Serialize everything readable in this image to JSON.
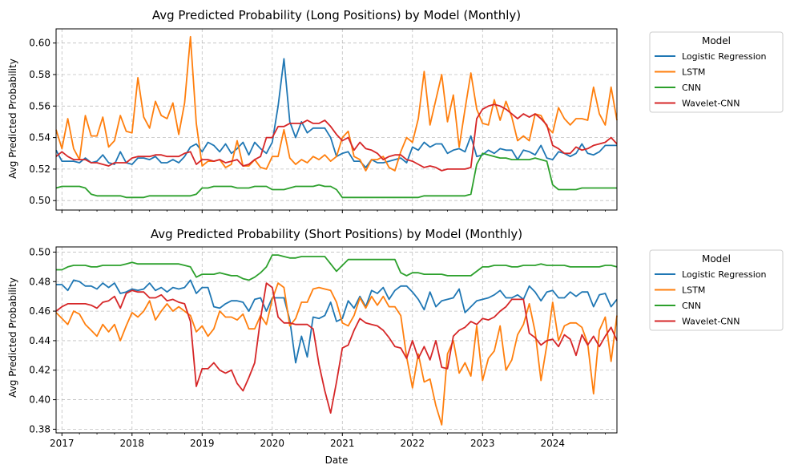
{
  "figure": {
    "xlabel": "Date",
    "x_ticks": [
      "2017",
      "2018",
      "2019",
      "2020",
      "2021",
      "2022",
      "2023",
      "2024"
    ]
  },
  "colors": {
    "Logistic Regression": "#1f77b4",
    "LSTM": "#ff7f0e",
    "CNN": "#2ca02c",
    "Wavelet-CNN": "#d62728"
  },
  "chart_data": [
    {
      "type": "line",
      "title": "Avg Predicted Probability (Long Positions) by Model (Monthly)",
      "ylabel": "Avg Predicted Probability",
      "xlabel": "",
      "x_start": "2016-12",
      "x_range": [
        "2016-12",
        "2024-12"
      ],
      "ylim": [
        0.494,
        0.609
      ],
      "y_ticks": [
        0.5,
        0.52,
        0.54,
        0.56,
        0.58,
        0.6
      ],
      "y_tick_labels": [
        "0.50",
        "0.52",
        "0.54",
        "0.56",
        "0.58",
        "0.60"
      ],
      "grid": true,
      "legend": {
        "title": "Model",
        "placement": "outside-right"
      },
      "series": [
        {
          "name": "Logistic Regression",
          "values": [
            0.532,
            0.525,
            0.525,
            0.525,
            0.524,
            0.527,
            0.524,
            0.525,
            0.529,
            0.524,
            0.523,
            0.531,
            0.524,
            0.523,
            0.527,
            0.527,
            0.526,
            0.528,
            0.524,
            0.524,
            0.526,
            0.524,
            0.528,
            0.534,
            0.536,
            0.531,
            0.537,
            0.535,
            0.531,
            0.536,
            0.53,
            0.533,
            0.537,
            0.529,
            0.537,
            0.533,
            0.53,
            0.537,
            0.56,
            0.59,
            0.55,
            0.54,
            0.55,
            0.543,
            0.546,
            0.546,
            0.546,
            0.54,
            0.528,
            0.53,
            0.531,
            0.525,
            0.525,
            0.521,
            0.526,
            0.524,
            0.524,
            0.525,
            0.526,
            0.527,
            0.524,
            0.534,
            0.532,
            0.537,
            0.534,
            0.536,
            0.536,
            0.53,
            0.532,
            0.533,
            0.531,
            0.541,
            0.528,
            0.529,
            0.532,
            0.53,
            0.533,
            0.532,
            0.532,
            0.526,
            0.532,
            0.531,
            0.529,
            0.535,
            0.527,
            0.526,
            0.531,
            0.53,
            0.528,
            0.53,
            0.536,
            0.53,
            0.529,
            0.531,
            0.535,
            0.535,
            0.535
          ]
        },
        {
          "name": "LSTM",
          "values": [
            0.545,
            0.533,
            0.552,
            0.533,
            0.526,
            0.554,
            0.541,
            0.541,
            0.553,
            0.534,
            0.538,
            0.554,
            0.544,
            0.543,
            0.578,
            0.553,
            0.546,
            0.563,
            0.554,
            0.552,
            0.562,
            0.542,
            0.562,
            0.604,
            0.549,
            0.522,
            0.525,
            0.525,
            0.526,
            0.521,
            0.523,
            0.538,
            0.522,
            0.522,
            0.526,
            0.521,
            0.52,
            0.528,
            0.528,
            0.545,
            0.527,
            0.523,
            0.526,
            0.524,
            0.528,
            0.526,
            0.529,
            0.525,
            0.528,
            0.54,
            0.544,
            0.528,
            0.526,
            0.519,
            0.526,
            0.526,
            0.528,
            0.521,
            0.519,
            0.531,
            0.54,
            0.537,
            0.552,
            0.582,
            0.548,
            0.564,
            0.58,
            0.55,
            0.567,
            0.534,
            0.558,
            0.581,
            0.558,
            0.549,
            0.548,
            0.564,
            0.551,
            0.563,
            0.553,
            0.538,
            0.541,
            0.538,
            0.555,
            0.554,
            0.547,
            0.543,
            0.559,
            0.552,
            0.548,
            0.552,
            0.552,
            0.551,
            0.572,
            0.555,
            0.548,
            0.572,
            0.551
          ]
        },
        {
          "name": "CNN",
          "values": [
            0.508,
            0.509,
            0.509,
            0.509,
            0.509,
            0.508,
            0.504,
            0.503,
            0.503,
            0.503,
            0.503,
            0.503,
            0.502,
            0.502,
            0.502,
            0.502,
            0.503,
            0.503,
            0.503,
            0.503,
            0.503,
            0.503,
            0.503,
            0.503,
            0.504,
            0.508,
            0.508,
            0.509,
            0.509,
            0.509,
            0.509,
            0.508,
            0.508,
            0.508,
            0.509,
            0.509,
            0.509,
            0.507,
            0.507,
            0.507,
            0.508,
            0.509,
            0.509,
            0.509,
            0.509,
            0.51,
            0.509,
            0.509,
            0.507,
            0.502,
            0.502,
            0.502,
            0.502,
            0.502,
            0.502,
            0.502,
            0.502,
            0.502,
            0.502,
            0.502,
            0.502,
            0.502,
            0.502,
            0.503,
            0.503,
            0.503,
            0.503,
            0.503,
            0.503,
            0.503,
            0.503,
            0.504,
            0.523,
            0.53,
            0.529,
            0.528,
            0.527,
            0.527,
            0.526,
            0.526,
            0.526,
            0.526,
            0.527,
            0.526,
            0.525,
            0.51,
            0.507,
            0.507,
            0.507,
            0.507,
            0.508,
            0.508,
            0.508,
            0.508,
            0.508,
            0.508,
            0.508
          ]
        },
        {
          "name": "Wavelet-CNN",
          "values": [
            0.528,
            0.531,
            0.528,
            0.526,
            0.526,
            0.526,
            0.524,
            0.524,
            0.523,
            0.522,
            0.524,
            0.524,
            0.524,
            0.527,
            0.528,
            0.528,
            0.528,
            0.529,
            0.529,
            0.528,
            0.528,
            0.528,
            0.53,
            0.531,
            0.523,
            0.526,
            0.526,
            0.525,
            0.526,
            0.524,
            0.525,
            0.526,
            0.522,
            0.523,
            0.526,
            0.528,
            0.54,
            0.54,
            0.547,
            0.547,
            0.549,
            0.549,
            0.549,
            0.551,
            0.549,
            0.549,
            0.551,
            0.547,
            0.542,
            0.538,
            0.54,
            0.532,
            0.537,
            0.533,
            0.532,
            0.53,
            0.526,
            0.528,
            0.529,
            0.529,
            0.526,
            0.525,
            0.523,
            0.521,
            0.522,
            0.521,
            0.519,
            0.52,
            0.52,
            0.52,
            0.52,
            0.521,
            0.552,
            0.558,
            0.56,
            0.561,
            0.56,
            0.558,
            0.555,
            0.552,
            0.555,
            0.553,
            0.555,
            0.552,
            0.548,
            0.535,
            0.533,
            0.53,
            0.53,
            0.534,
            0.532,
            0.533,
            0.535,
            0.536,
            0.537,
            0.54,
            0.536
          ]
        }
      ]
    },
    {
      "type": "line",
      "title": "Avg Predicted Probability (Short Positions) by Model (Monthly)",
      "ylabel": "Avg Predicted Probability",
      "xlabel": "Date",
      "x_start": "2016-12",
      "x_range": [
        "2016-12",
        "2024-12"
      ],
      "ylim": [
        0.3775,
        0.5035
      ],
      "y_ticks": [
        0.38,
        0.4,
        0.42,
        0.44,
        0.46,
        0.48,
        0.5
      ],
      "y_tick_labels": [
        "0.38",
        "0.40",
        "0.42",
        "0.44",
        "0.46",
        "0.48",
        "0.50"
      ],
      "grid": true,
      "legend": {
        "title": "Model",
        "placement": "outside-right"
      },
      "series": [
        {
          "name": "Logistic Regression",
          "values": [
            0.478,
            0.478,
            0.474,
            0.481,
            0.48,
            0.477,
            0.477,
            0.475,
            0.479,
            0.476,
            0.479,
            0.472,
            0.473,
            0.475,
            0.474,
            0.475,
            0.479,
            0.474,
            0.476,
            0.473,
            0.476,
            0.475,
            0.476,
            0.481,
            0.472,
            0.476,
            0.476,
            0.463,
            0.462,
            0.465,
            0.467,
            0.467,
            0.466,
            0.46,
            0.468,
            0.469,
            0.46,
            0.469,
            0.469,
            0.469,
            0.454,
            0.425,
            0.443,
            0.429,
            0.456,
            0.455,
            0.457,
            0.466,
            0.453,
            0.455,
            0.467,
            0.462,
            0.47,
            0.463,
            0.474,
            0.472,
            0.476,
            0.468,
            0.474,
            0.477,
            0.477,
            0.473,
            0.468,
            0.461,
            0.473,
            0.463,
            0.467,
            0.468,
            0.469,
            0.475,
            0.459,
            0.463,
            0.467,
            0.468,
            0.469,
            0.471,
            0.474,
            0.469,
            0.469,
            0.471,
            0.468,
            0.477,
            0.473,
            0.467,
            0.473,
            0.474,
            0.469,
            0.469,
            0.473,
            0.47,
            0.473,
            0.473,
            0.463,
            0.471,
            0.472,
            0.463,
            0.468
          ]
        },
        {
          "name": "LSTM",
          "values": [
            0.459,
            0.455,
            0.451,
            0.46,
            0.458,
            0.451,
            0.447,
            0.443,
            0.451,
            0.446,
            0.451,
            0.44,
            0.45,
            0.459,
            0.456,
            0.46,
            0.467,
            0.454,
            0.46,
            0.465,
            0.46,
            0.463,
            0.46,
            0.457,
            0.446,
            0.45,
            0.443,
            0.448,
            0.46,
            0.456,
            0.456,
            0.454,
            0.458,
            0.448,
            0.448,
            0.457,
            0.451,
            0.468,
            0.479,
            0.476,
            0.45,
            0.455,
            0.466,
            0.466,
            0.475,
            0.476,
            0.475,
            0.474,
            0.466,
            0.452,
            0.45,
            0.457,
            0.469,
            0.462,
            0.47,
            0.464,
            0.47,
            0.463,
            0.463,
            0.457,
            0.429,
            0.408,
            0.431,
            0.412,
            0.414,
            0.396,
            0.383,
            0.431,
            0.44,
            0.418,
            0.425,
            0.416,
            0.45,
            0.413,
            0.428,
            0.433,
            0.45,
            0.42,
            0.427,
            0.444,
            0.451,
            0.465,
            0.446,
            0.413,
            0.437,
            0.466,
            0.44,
            0.45,
            0.452,
            0.452,
            0.449,
            0.438,
            0.404,
            0.447,
            0.456,
            0.426,
            0.457
          ]
        },
        {
          "name": "CNN",
          "values": [
            0.488,
            0.488,
            0.49,
            0.491,
            0.491,
            0.491,
            0.49,
            0.49,
            0.491,
            0.491,
            0.491,
            0.491,
            0.492,
            0.493,
            0.492,
            0.492,
            0.492,
            0.492,
            0.492,
            0.492,
            0.492,
            0.492,
            0.491,
            0.49,
            0.483,
            0.485,
            0.485,
            0.485,
            0.486,
            0.485,
            0.484,
            0.484,
            0.482,
            0.481,
            0.483,
            0.486,
            0.49,
            0.498,
            0.498,
            0.497,
            0.496,
            0.496,
            0.497,
            0.497,
            0.497,
            0.497,
            0.497,
            0.492,
            0.487,
            0.491,
            0.495,
            0.495,
            0.495,
            0.495,
            0.495,
            0.495,
            0.495,
            0.495,
            0.495,
            0.486,
            0.484,
            0.486,
            0.486,
            0.485,
            0.485,
            0.485,
            0.485,
            0.484,
            0.484,
            0.484,
            0.484,
            0.484,
            0.487,
            0.49,
            0.49,
            0.491,
            0.491,
            0.491,
            0.49,
            0.49,
            0.491,
            0.491,
            0.491,
            0.492,
            0.491,
            0.491,
            0.491,
            0.491,
            0.49,
            0.49,
            0.49,
            0.49,
            0.49,
            0.49,
            0.491,
            0.491,
            0.49
          ]
        },
        {
          "name": "Wavelet-CNN",
          "values": [
            0.46,
            0.463,
            0.465,
            0.465,
            0.465,
            0.465,
            0.464,
            0.462,
            0.466,
            0.467,
            0.47,
            0.462,
            0.472,
            0.474,
            0.473,
            0.473,
            0.469,
            0.469,
            0.471,
            0.467,
            0.468,
            0.466,
            0.465,
            0.453,
            0.409,
            0.421,
            0.421,
            0.425,
            0.42,
            0.418,
            0.42,
            0.411,
            0.406,
            0.415,
            0.425,
            0.455,
            0.479,
            0.476,
            0.456,
            0.452,
            0.452,
            0.451,
            0.451,
            0.451,
            0.448,
            0.424,
            0.406,
            0.391,
            0.412,
            0.435,
            0.437,
            0.447,
            0.455,
            0.452,
            0.451,
            0.45,
            0.447,
            0.442,
            0.436,
            0.435,
            0.428,
            0.44,
            0.428,
            0.436,
            0.427,
            0.44,
            0.422,
            0.421,
            0.443,
            0.447,
            0.449,
            0.453,
            0.451,
            0.455,
            0.454,
            0.456,
            0.46,
            0.463,
            0.468,
            0.468,
            0.468,
            0.445,
            0.442,
            0.437,
            0.44,
            0.441,
            0.436,
            0.444,
            0.441,
            0.43,
            0.444,
            0.437,
            0.443,
            0.436,
            0.443,
            0.449,
            0.44
          ]
        }
      ]
    }
  ]
}
